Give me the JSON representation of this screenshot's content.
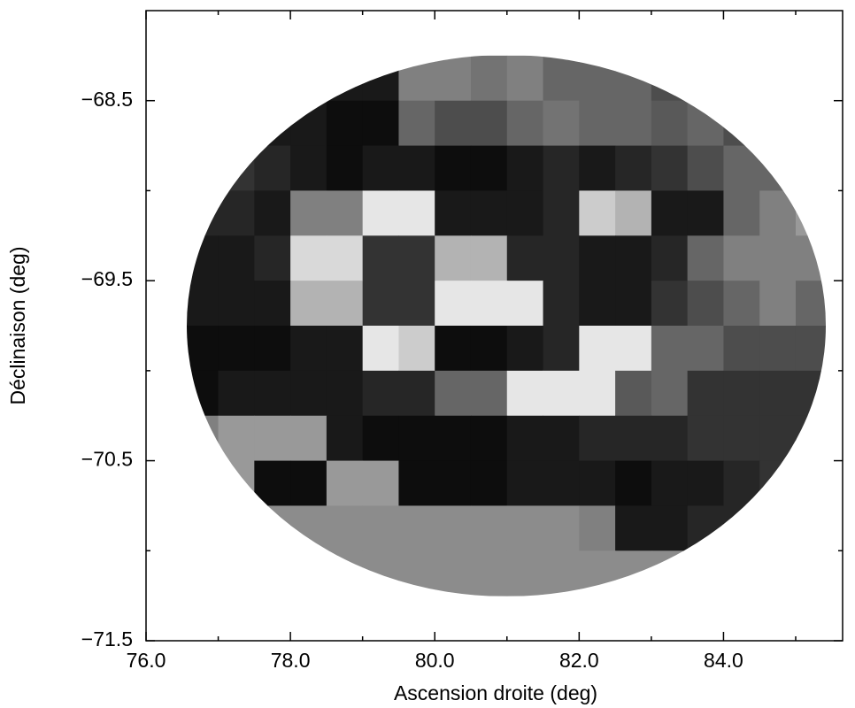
{
  "chart_data": {
    "type": "density-map",
    "x_label": "Ascension droite (deg)",
    "y_label": "Déclinaison (deg)",
    "xlim": [
      76.0,
      85.65
    ],
    "ylim": [
      -71.5,
      -68.0
    ],
    "xticks": [
      {
        "value": 76,
        "label": "76.0"
      },
      {
        "value": 78,
        "label": "78.0"
      },
      {
        "value": 80,
        "label": "80.0"
      },
      {
        "value": 82,
        "label": "82.0"
      },
      {
        "value": 84,
        "label": "84.0"
      }
    ],
    "xminorticks": [
      77,
      79,
      81,
      83,
      85
    ],
    "yticks": [
      {
        "value": -68.5,
        "label": "−68.5"
      },
      {
        "value": -69.5,
        "label": "−69.5"
      },
      {
        "value": -70.5,
        "label": "−70.5"
      },
      {
        "value": -71.5,
        "label": "−71.5"
      }
    ],
    "yminorticks": [
      -69,
      -70,
      -71
    ],
    "x_edges": [
      76.5,
      77,
      77.5,
      78,
      78.5,
      79,
      79.5,
      80,
      80.5,
      81,
      81.5,
      82,
      82.5,
      83,
      83.5,
      84,
      84.5,
      85,
      85.5
    ],
    "y_edges": [
      -68.25,
      -68.5,
      -68.75,
      -69,
      -69.25,
      -69.5,
      -69.75,
      -70,
      -70.25,
      -70.5,
      -70.75,
      -71,
      -71.25
    ],
    "values": [
      [
        0.9,
        0.9,
        0.9,
        0.9,
        0.9,
        0.9,
        0.5,
        0.5,
        0.55,
        0.5,
        0.6,
        0.6,
        0.6,
        0.7,
        0.7,
        0.8,
        0.8,
        0.8
      ],
      [
        0.9,
        0.9,
        0.9,
        0.9,
        0.95,
        0.95,
        0.6,
        0.7,
        0.7,
        0.6,
        0.55,
        0.6,
        0.6,
        0.65,
        0.6,
        0.7,
        0.7,
        0.7
      ],
      [
        0.8,
        0.8,
        0.85,
        0.9,
        0.95,
        0.9,
        0.9,
        0.95,
        0.95,
        0.9,
        0.85,
        0.9,
        0.85,
        0.8,
        0.7,
        0.6,
        0.6,
        0.6
      ],
      [
        0.85,
        0.85,
        0.9,
        0.5,
        0.5,
        0.1,
        0.1,
        0.9,
        0.9,
        0.9,
        0.85,
        0.2,
        0.3,
        0.9,
        0.9,
        0.6,
        0.5,
        0.4
      ],
      [
        0.9,
        0.9,
        0.85,
        0.15,
        0.15,
        0.8,
        0.8,
        0.3,
        0.3,
        0.85,
        0.85,
        0.9,
        0.9,
        0.85,
        0.6,
        0.5,
        0.5,
        0.5
      ],
      [
        0.9,
        0.9,
        0.9,
        0.3,
        0.3,
        0.8,
        0.8,
        0.1,
        0.1,
        0.1,
        0.85,
        0.9,
        0.9,
        0.8,
        0.7,
        0.6,
        0.5,
        0.6
      ],
      [
        0.95,
        0.95,
        0.95,
        0.9,
        0.9,
        0.1,
        0.2,
        0.95,
        0.95,
        0.9,
        0.85,
        0.1,
        0.1,
        0.6,
        0.6,
        0.7,
        0.7,
        0.7
      ],
      [
        0.95,
        0.9,
        0.9,
        0.9,
        0.9,
        0.85,
        0.85,
        0.6,
        0.6,
        0.1,
        0.1,
        0.1,
        0.65,
        0.6,
        0.8,
        0.8,
        0.8,
        0.8
      ],
      [
        0.5,
        0.4,
        0.4,
        0.4,
        0.9,
        0.95,
        0.95,
        0.95,
        0.95,
        0.9,
        0.9,
        0.85,
        0.85,
        0.85,
        0.8,
        0.8,
        0.8,
        0.8
      ],
      [
        0.4,
        0.4,
        0.95,
        0.95,
        0.4,
        0.4,
        0.95,
        0.95,
        0.95,
        0.9,
        0.9,
        0.9,
        0.95,
        0.9,
        0.9,
        0.85,
        0.8,
        0.8
      ],
      [
        0.45,
        0.45,
        0.45,
        0.45,
        0.45,
        0.45,
        0.45,
        0.45,
        0.45,
        0.45,
        0.45,
        0.5,
        0.9,
        0.9,
        0.85,
        0.85,
        0.8,
        0.8
      ],
      [
        0.45,
        0.45,
        0.45,
        0.45,
        0.45,
        0.45,
        0.45,
        0.45,
        0.45,
        0.45,
        0.45,
        0.45,
        0.45,
        0.45,
        0.45,
        0.45,
        0.45,
        0.45
      ]
    ]
  }
}
